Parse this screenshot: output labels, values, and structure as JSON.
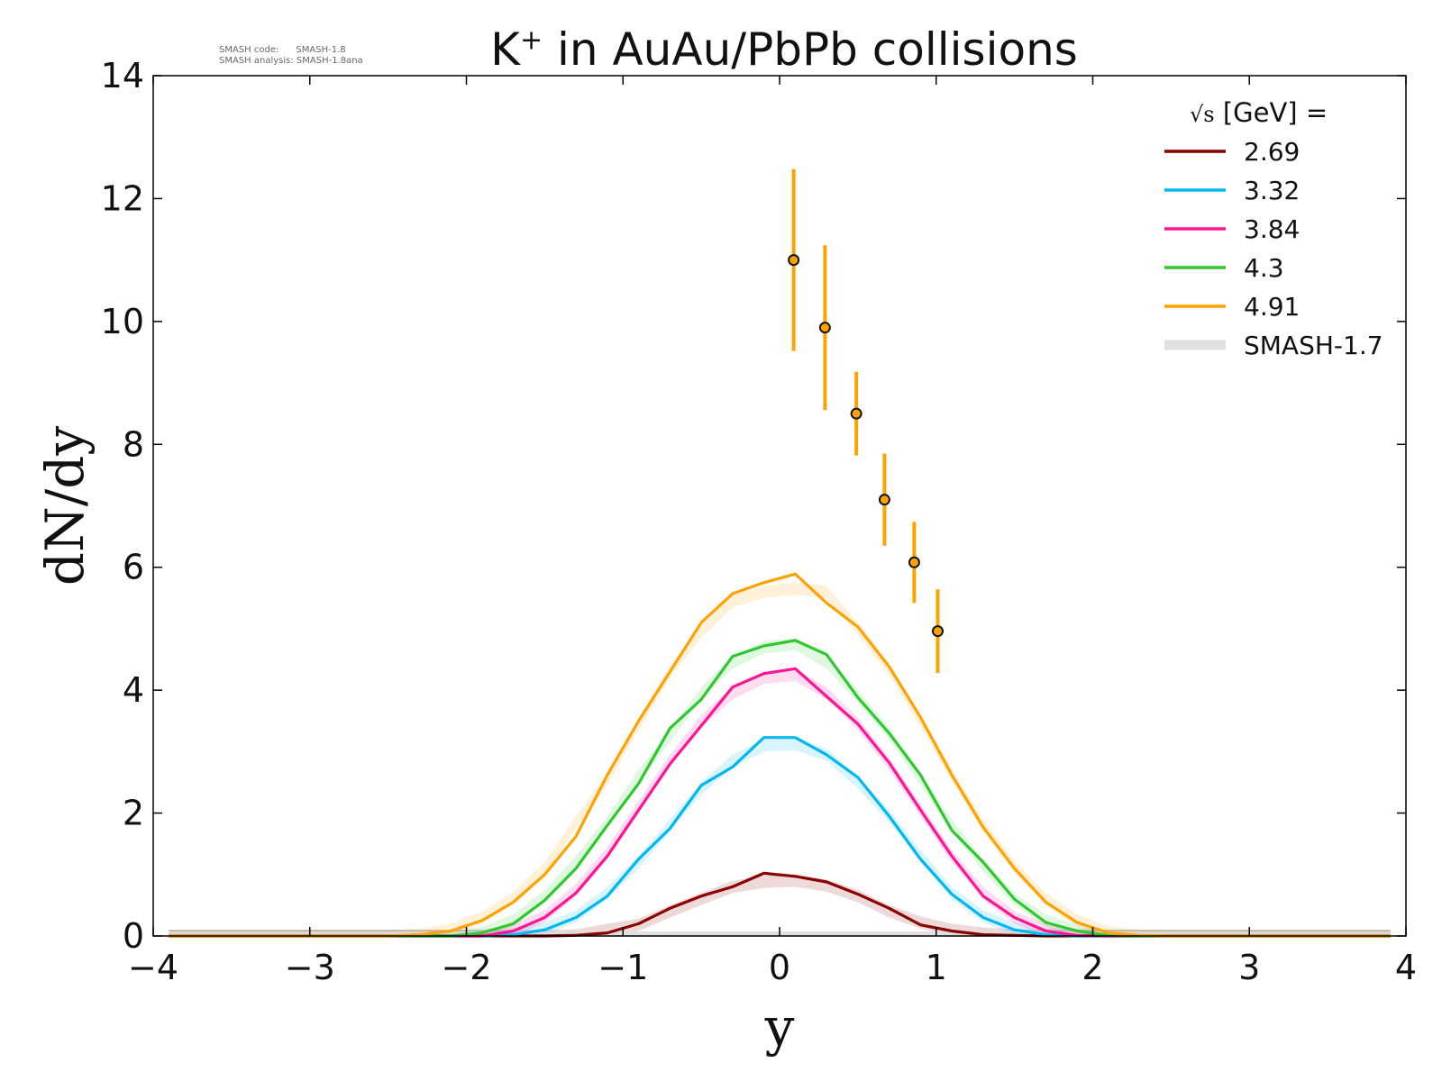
{
  "header": {
    "title_main": "K",
    "title_sup": "+",
    "title_rest": " in AuAu/PbPb collisions",
    "info_code": "SMASH code:      SMASH-1.8",
    "info_analysis": "SMASH analysis: SMASH-1.8ana"
  },
  "chart_data": {
    "type": "line",
    "title": "K+ in AuAu/PbPb collisions",
    "xlabel": "y",
    "ylabel": "dN/dy",
    "xlim": [
      -4,
      4
    ],
    "ylim": [
      0,
      14
    ],
    "x_ticks": [
      -4,
      -3,
      -2,
      -1,
      0,
      1,
      2,
      3,
      4
    ],
    "x_tick_labels": [
      "−4",
      "−3",
      "−2",
      "−1",
      "0",
      "1",
      "2",
      "3",
      "4"
    ],
    "y_ticks": [
      0,
      2,
      4,
      6,
      8,
      10,
      12,
      14
    ],
    "y_tick_labels": [
      "0",
      "2",
      "4",
      "6",
      "8",
      "10",
      "12",
      "14"
    ],
    "legend": {
      "position": "top-right",
      "header_sqrt": "√s",
      "header_text": " [GeV] ="
    },
    "x": [
      -3.9,
      -3.7,
      -3.5,
      -3.3,
      -3.1,
      -2.9,
      -2.7,
      -2.5,
      -2.3,
      -2.1,
      -1.9,
      -1.7,
      -1.5,
      -1.3,
      -1.1,
      -0.9,
      -0.7,
      -0.5,
      -0.3,
      -0.1,
      0.1,
      0.3,
      0.5,
      0.7,
      0.9,
      1.1,
      1.3,
      1.5,
      1.7,
      1.9,
      2.1,
      2.3,
      2.5,
      2.7,
      2.9,
      3.1,
      3.3,
      3.5,
      3.7,
      3.9
    ],
    "series": [
      {
        "name": "2.69",
        "color": "#8b0000",
        "values": [
          0,
          0,
          0,
          0,
          0,
          0,
          0,
          0,
          0,
          0,
          0,
          0,
          0,
          0.01,
          0.05,
          0.2,
          0.45,
          0.65,
          0.8,
          1.02,
          0.97,
          0.88,
          0.68,
          0.45,
          0.18,
          0.08,
          0.02,
          0.01,
          0,
          0,
          0,
          0,
          0,
          0,
          0,
          0,
          0,
          0,
          0,
          0
        ],
        "band": [
          0,
          0,
          0,
          0,
          0,
          0,
          0,
          0,
          0,
          0,
          0,
          0,
          0,
          0.01,
          0.1,
          0.18,
          0.4,
          0.6,
          0.8,
          0.88,
          0.9,
          0.82,
          0.65,
          0.4,
          0.22,
          0.1,
          0.04,
          0.01,
          0,
          0,
          0,
          0,
          0,
          0,
          0,
          0,
          0,
          0,
          0,
          0
        ]
      },
      {
        "name": "3.32",
        "color": "#00b7f2",
        "values": [
          0,
          0,
          0,
          0,
          0,
          0,
          0,
          0,
          0,
          0,
          0,
          0.02,
          0.1,
          0.3,
          0.65,
          1.25,
          1.75,
          2.45,
          2.75,
          3.23,
          3.23,
          2.95,
          2.58,
          1.95,
          1.25,
          0.68,
          0.3,
          0.1,
          0.02,
          0,
          0,
          0,
          0,
          0,
          0,
          0,
          0,
          0,
          0,
          0
        ],
        "band": [
          0,
          0,
          0,
          0,
          0,
          0,
          0,
          0,
          0,
          0,
          0,
          0.03,
          0.12,
          0.32,
          0.7,
          1.2,
          1.8,
          2.4,
          2.85,
          3.1,
          3.12,
          2.95,
          2.5,
          1.95,
          1.3,
          0.7,
          0.32,
          0.12,
          0.03,
          0,
          0,
          0,
          0,
          0,
          0,
          0,
          0,
          0,
          0,
          0
        ]
      },
      {
        "name": "3.84",
        "color": "#ff1493",
        "values": [
          0,
          0,
          0,
          0,
          0,
          0,
          0,
          0,
          0,
          0,
          0,
          0.08,
          0.3,
          0.7,
          1.3,
          2.05,
          2.8,
          3.42,
          4.05,
          4.27,
          4.35,
          3.9,
          3.45,
          2.82,
          2.05,
          1.3,
          0.65,
          0.3,
          0.08,
          0.01,
          0,
          0,
          0,
          0,
          0,
          0,
          0,
          0,
          0,
          0
        ],
        "band": [
          0,
          0,
          0,
          0,
          0,
          0,
          0,
          0,
          0,
          0,
          0,
          0.1,
          0.32,
          0.75,
          1.35,
          2.1,
          2.85,
          3.5,
          3.95,
          4.2,
          4.25,
          3.95,
          3.45,
          2.8,
          2.05,
          1.3,
          0.7,
          0.3,
          0.1,
          0.02,
          0,
          0,
          0,
          0,
          0,
          0,
          0,
          0,
          0,
          0
        ]
      },
      {
        "name": "4.3",
        "color": "#30c830",
        "values": [
          0,
          0,
          0,
          0,
          0,
          0,
          0,
          0,
          0,
          0,
          0.05,
          0.2,
          0.58,
          1.1,
          1.8,
          2.48,
          3.38,
          3.85,
          4.55,
          4.72,
          4.81,
          4.58,
          3.88,
          3.3,
          2.62,
          1.72,
          1.2,
          0.6,
          0.22,
          0.08,
          0.01,
          0,
          0,
          0,
          0,
          0,
          0,
          0,
          0,
          0
        ],
        "band": [
          0,
          0,
          0,
          0,
          0,
          0,
          0,
          0,
          0,
          0,
          0.05,
          0.25,
          0.65,
          1.2,
          1.85,
          2.6,
          3.25,
          3.95,
          4.45,
          4.7,
          4.75,
          4.45,
          3.9,
          3.3,
          2.55,
          1.8,
          1.15,
          0.6,
          0.25,
          0.08,
          0.01,
          0,
          0,
          0,
          0,
          0,
          0,
          0,
          0,
          0
        ]
      },
      {
        "name": "4.91",
        "color": "#ffa200",
        "values": [
          0,
          0,
          0,
          0,
          0,
          0,
          0,
          0,
          0.02,
          0.08,
          0.25,
          0.55,
          1.0,
          1.62,
          2.62,
          3.5,
          4.3,
          5.1,
          5.57,
          5.75,
          5.89,
          5.42,
          5.03,
          4.38,
          3.56,
          2.62,
          1.77,
          1.1,
          0.55,
          0.22,
          0.05,
          0.01,
          0,
          0,
          0,
          0,
          0,
          0,
          0,
          0
        ],
        "band": [
          0,
          0,
          0,
          0,
          0,
          0,
          0,
          0,
          0.02,
          0.1,
          0.3,
          0.62,
          1.1,
          1.85,
          2.55,
          3.45,
          4.3,
          4.95,
          5.45,
          5.6,
          5.65,
          5.6,
          5.0,
          4.35,
          3.5,
          2.62,
          1.8,
          1.12,
          0.6,
          0.25,
          0.06,
          0.01,
          0,
          0,
          0,
          0,
          0,
          0,
          0,
          0
        ]
      }
    ],
    "baseline": {
      "name": "SMASH-1.7",
      "color": "#dddddd",
      "value": 0.03
    },
    "points": {
      "color": "#ffa200",
      "marker_fill": "#ffa200",
      "marker_edge": "#111111",
      "x": [
        0.09,
        0.29,
        0.49,
        0.67,
        0.86,
        1.01
      ],
      "y": [
        11.0,
        9.9,
        8.5,
        7.1,
        6.08,
        4.96
      ],
      "err": [
        1.48,
        1.34,
        0.68,
        0.75,
        0.66,
        0.68
      ]
    }
  }
}
